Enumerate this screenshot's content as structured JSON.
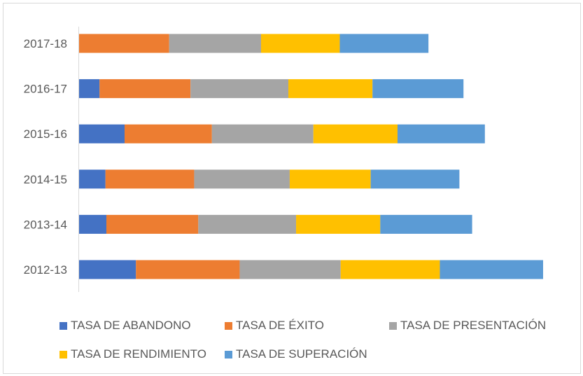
{
  "chart_data": {
    "type": "bar",
    "orientation": "horizontal",
    "stacked": true,
    "categories": [
      "2012-13",
      "2013-14",
      "2014-15",
      "2015-16",
      "2016-17",
      "2017-18"
    ],
    "series": [
      {
        "name": "TASA DE ABANDONO",
        "color": "#4472C4",
        "values": [
          12.5,
          6.0,
          5.8,
          10.0,
          4.5,
          0
        ]
      },
      {
        "name": "TASA DE ÉXITO",
        "color": "#ED7D31",
        "values": [
          22.8,
          20.2,
          19.5,
          19.2,
          20.0,
          19.8
        ]
      },
      {
        "name": "TASA DE PRESENTACIÓN",
        "color": "#A5A5A5",
        "values": [
          22.2,
          21.5,
          21.0,
          22.3,
          21.5,
          20.2
        ]
      },
      {
        "name": "TASA DE RENDIMIENTO",
        "color": "#FFC000",
        "values": [
          21.8,
          18.5,
          17.8,
          18.5,
          18.5,
          17.3
        ]
      },
      {
        "name": "TASA DE SUPERACIÓN",
        "color": "#5B9BD5",
        "values": [
          22.7,
          20.2,
          19.5,
          19.2,
          20.0,
          19.5
        ]
      }
    ],
    "xlim": [
      0,
      104
    ],
    "grid": false,
    "legend_position": "bottom"
  }
}
